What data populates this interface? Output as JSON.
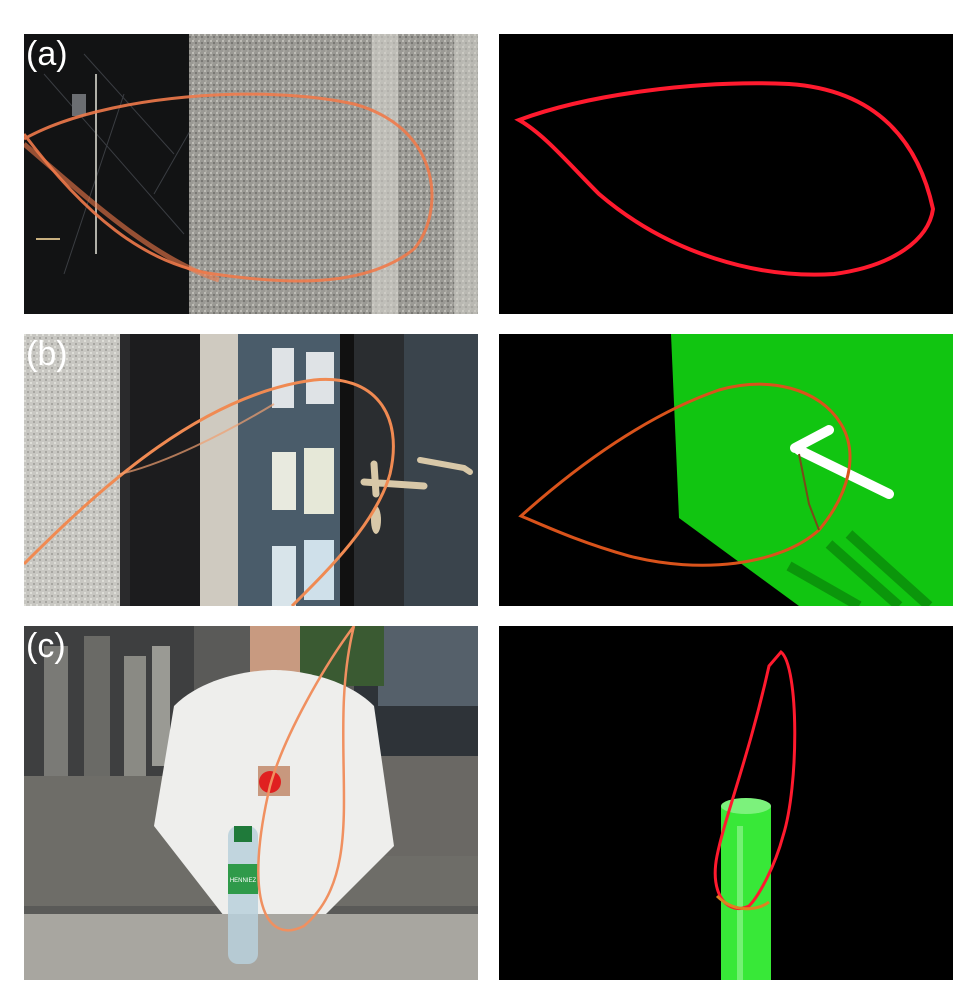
{
  "panels": {
    "a": {
      "label": "(a)"
    },
    "b": {
      "label": "(b)"
    },
    "c": {
      "label": "(c)"
    }
  },
  "bottle_label": "HENNIEZ",
  "colors": {
    "trace_photo": "#f07a4a",
    "trace_red": "#ff1a2e",
    "trace_orange": "#d9531b",
    "plane_green": "#11c511",
    "cylinder_green": "#38e838",
    "background_black": "#000000"
  }
}
